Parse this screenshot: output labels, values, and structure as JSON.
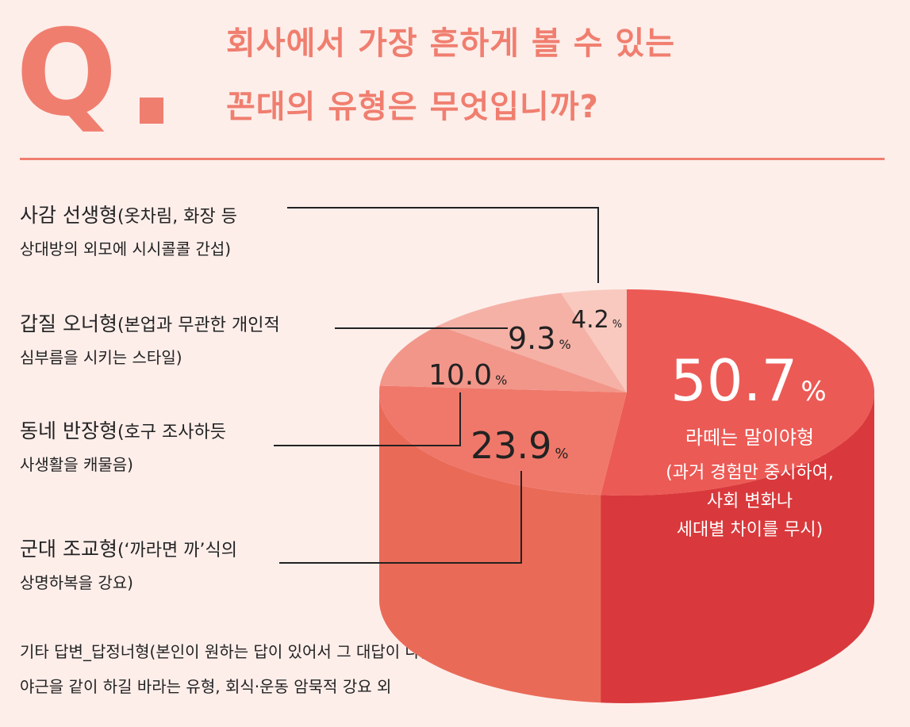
{
  "header": {
    "q_mark": "Q",
    "title_line1": "회사에서 가장 흔하게 볼 수 있는",
    "title_line2": "꼰대의 유형은 무엇입니까?"
  },
  "categories": [
    {
      "name": "사감 선생형",
      "desc1": "(옷차림, 화장 등",
      "desc2": "상대방의 외모에 시시콜콜 간섭)"
    },
    {
      "name": "갑질 오너형",
      "desc1": "(본업과 무관한 개인적",
      "desc2": "심부름을 시키는 스타일)"
    },
    {
      "name": "동네 반장형",
      "desc1": "(호구 조사하듯",
      "desc2": "사생활을 캐물음)"
    },
    {
      "name": "군대 조교형",
      "desc1": "(‘까라면 까’식의",
      "desc2": "상명하복을 강요)"
    }
  ],
  "footer": {
    "line1": "기타 답변_답정너형(본인이 원하는 답이 있어서 그 대답이 나올 때까지 회의),",
    "line2": "야근을 같이 하길 바라는 유형, 회식·운동 암묵적 강요 외"
  },
  "chart_data": {
    "type": "pie",
    "unit": "%",
    "slices": [
      {
        "label": "라떼는 말이야형",
        "value": 50.7,
        "value_text": "50.7",
        "color": "#ec5a55",
        "side_color": "#d9393c",
        "desc_lines": [
          "(과거 경험만 중시하여,",
          "사회 변화나",
          "세대별 차이를 무시)"
        ]
      },
      {
        "label": "군대 조교형",
        "value": 23.9,
        "value_text": "23.9",
        "color": "#f0786a",
        "side_color": "#ea6a58"
      },
      {
        "label": "동네 반장형",
        "value": 10.0,
        "value_text": "10.0",
        "color": "#f2968a",
        "side_color": "#ec7d6f"
      },
      {
        "label": "갑질 오너형",
        "value": 9.3,
        "value_text": "9.3",
        "color": "#f5b1a6",
        "side_color": "#ef9386"
      },
      {
        "label": "사감 선생형",
        "value": 4.2,
        "value_text": "4.2",
        "color": "#f9c9bf",
        "side_color": "#f2ab9f"
      }
    ]
  }
}
